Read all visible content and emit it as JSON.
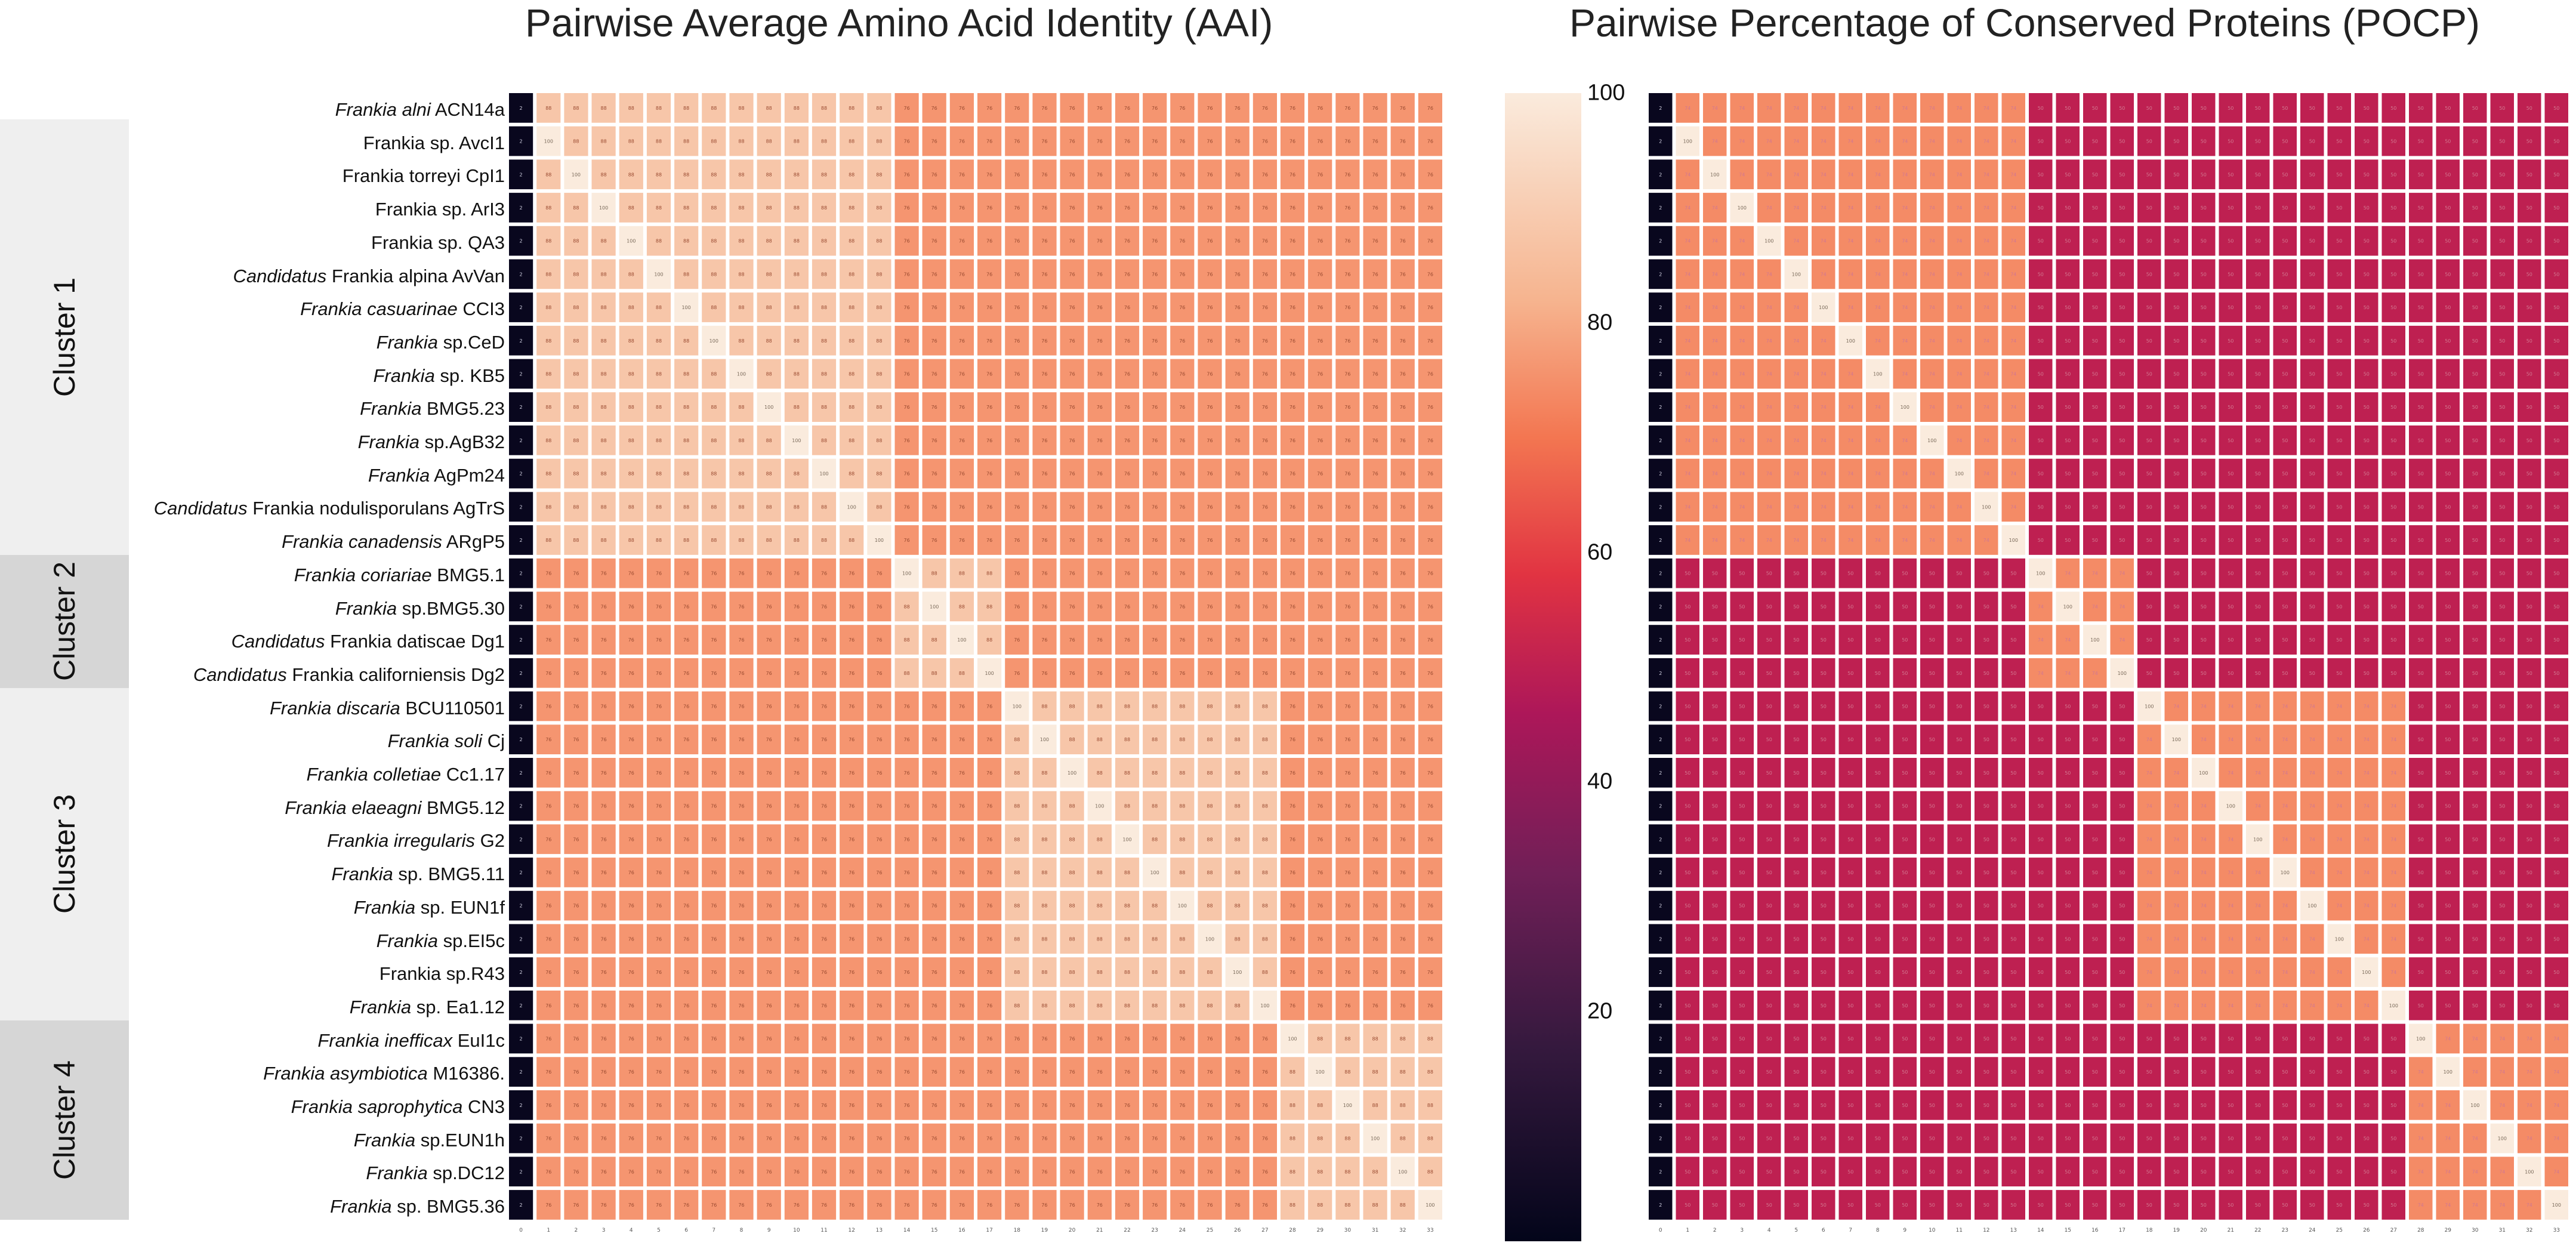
{
  "titles": {
    "aai": "Pairwise Average Amino Acid Identity  (AAI)",
    "pocp": "Pairwise Percentage of Conserved Proteins (POCP)"
  },
  "clusters": [
    {
      "name": "Cluster 1",
      "first_row": 0,
      "last_row": 13
    },
    {
      "name": "Cluster 2",
      "first_row": 14,
      "last_row": 17
    },
    {
      "name": "Cluster 3",
      "first_row": 18,
      "last_row": 27
    },
    {
      "name": "Cluster 4",
      "first_row": 28,
      "last_row": 33
    }
  ],
  "strains": [
    {
      "italic": "Frankia alni",
      "rest": " ACN14a"
    },
    {
      "italic": "",
      "rest": "Frankia sp. AvcI1"
    },
    {
      "italic": "",
      "rest": "Frankia torreyi CpI1"
    },
    {
      "italic": "",
      "rest": "Frankia sp. ArI3"
    },
    {
      "italic": "",
      "rest": "Frankia sp. QA3"
    },
    {
      "italic": "Candidatus",
      "rest": " Frankia alpina AvVan"
    },
    {
      "italic": "Frankia casuarinae",
      "rest": " CCI3"
    },
    {
      "italic": "Frankia",
      "rest": " sp.CeD"
    },
    {
      "italic": "Frankia",
      "rest": " sp. KB5"
    },
    {
      "italic": "Frankia",
      "rest": " BMG5.23"
    },
    {
      "italic": "Frankia",
      "rest": " sp.AgB32"
    },
    {
      "italic": "Frankia",
      "rest": " AgPm24"
    },
    {
      "italic": "Candidatus",
      "rest": " Frankia nodulisporulans AgTrS"
    },
    {
      "italic": "Frankia canadensis",
      "rest": " ARgP5"
    },
    {
      "italic": "Frankia coriariae",
      "rest": " BMG5.1"
    },
    {
      "italic": "Frankia",
      "rest": " sp.BMG5.30"
    },
    {
      "italic": "Candidatus",
      "rest": " Frankia datiscae Dg1"
    },
    {
      "italic": "Candidatus",
      "rest": " Frankia californiensis Dg2"
    },
    {
      "italic": "Frankia discaria",
      "rest": " BCU110501"
    },
    {
      "italic": "Frankia soli",
      "rest": " Cj"
    },
    {
      "italic": "Frankia colletiae",
      "rest": " Cc1.17"
    },
    {
      "italic": "Frankia elaeagni",
      "rest": " BMG5.12"
    },
    {
      "italic": "Frankia irregularis",
      "rest": " G2"
    },
    {
      "italic": "Frankia",
      "rest": " sp. BMG5.11"
    },
    {
      "italic": "Frankia",
      "rest": " sp. EUN1f"
    },
    {
      "italic": "Frankia",
      "rest": " sp.EI5c"
    },
    {
      "italic": "",
      "rest": "Frankia sp.R43"
    },
    {
      "italic": "Frankia",
      "rest": " sp. Ea1.12"
    },
    {
      "italic": "Frankia inefficax",
      "rest": " EuI1c"
    },
    {
      "italic": "Frankia asymbiotica",
      "rest": " M16386."
    },
    {
      "italic": "Frankia saprophytica",
      "rest": " CN3"
    },
    {
      "italic": "Frankia",
      "rest": " sp.EUN1h"
    },
    {
      "italic": "Frankia",
      "rest": " sp.DC12"
    },
    {
      "italic": "Frankia",
      "rest": " sp. BMG5.36"
    }
  ],
  "chart_data": [
    {
      "type": "heatmap",
      "name": "aai",
      "title": "Pairwise Average Amino Acid Identity  (AAI)",
      "n": 34,
      "clusters": [
        [
          0,
          13
        ],
        [
          14,
          17
        ],
        [
          18,
          27
        ],
        [
          28,
          33
        ]
      ],
      "within_cluster_value": 88,
      "between_cluster_value": 76,
      "diagonal_value": 100,
      "first_column_value": 2,
      "cell_label_color": "#9a4a30",
      "gap_color": "#ffffff"
    },
    {
      "type": "heatmap",
      "name": "pocp",
      "title": "Pairwise Percentage of Conserved Proteins (POCP)",
      "n": 34,
      "clusters": [
        [
          0,
          13
        ],
        [
          14,
          17
        ],
        [
          18,
          27
        ],
        [
          28,
          33
        ]
      ],
      "within_cluster_value": 74,
      "between_cluster_value": 50,
      "diagonal_value": 100,
      "first_column_value": 2,
      "cell_label_color": "#d27890",
      "gap_color": "#ffffff"
    }
  ],
  "colorbar": {
    "ticks": [
      {
        "value": 100,
        "label": "100"
      },
      {
        "value": 80,
        "label": "80"
      },
      {
        "value": 60,
        "label": "60"
      },
      {
        "value": 40,
        "label": "40"
      },
      {
        "value": 20,
        "label": "20"
      }
    ],
    "range": [
      0,
      100
    ],
    "stops": [
      [
        0.0,
        "#03051a"
      ],
      [
        0.17,
        "#35193e"
      ],
      [
        0.32,
        "#701f57"
      ],
      [
        0.46,
        "#ad1759"
      ],
      [
        0.58,
        "#e13342"
      ],
      [
        0.7,
        "#f37651"
      ],
      [
        0.82,
        "#f6b48f"
      ],
      [
        1.0,
        "#faebdd"
      ]
    ]
  }
}
